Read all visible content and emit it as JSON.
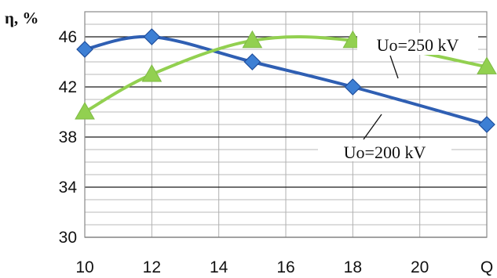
{
  "chart_data": {
    "type": "line",
    "ylabel": "η, %",
    "xlabel": "",
    "x": [
      10,
      12,
      15,
      18,
      22
    ],
    "x_ticks": [
      "10",
      "12",
      "14",
      "16",
      "18",
      "20",
      "Q"
    ],
    "x_tick_values": [
      10,
      12,
      14,
      16,
      18,
      20,
      22
    ],
    "xlim": [
      10,
      22
    ],
    "y_ticks": [
      "30",
      "34",
      "38",
      "42",
      "46"
    ],
    "y_tick_values": [
      30,
      34,
      38,
      42,
      46
    ],
    "ylim": [
      30,
      48
    ],
    "grid": true,
    "series": [
      {
        "name": "Uo=200 kV",
        "marker": "diamond",
        "color": "#2f5fb3",
        "marker_color": "#3d7fd4",
        "values": [
          45,
          46,
          44,
          42,
          39
        ]
      },
      {
        "name": "Uo=250 kV",
        "marker": "triangle",
        "color": "#92d050",
        "marker_color": "#92d050",
        "values": [
          40,
          43,
          45.7,
          45.7,
          43.6
        ]
      }
    ],
    "annotations": [
      {
        "text": "Uo=250 kV",
        "series": "Uo=250 kV"
      },
      {
        "text": "Uo=200 kV",
        "series": "Uo=200 kV"
      }
    ]
  }
}
